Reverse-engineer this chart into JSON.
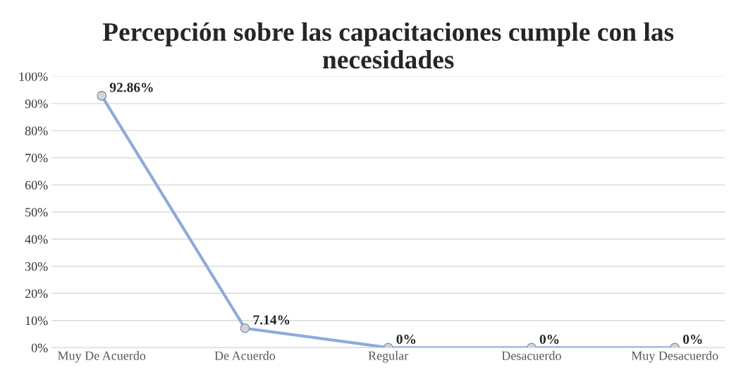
{
  "chart_data": {
    "type": "line",
    "title": "Percepción sobre las capacitaciones cumple con las necesidades",
    "categories": [
      "Muy De Acuerdo",
      "De Acuerdo",
      "Regular",
      "Desacuerdo",
      "Muy Desacuerdo"
    ],
    "series": [
      {
        "color": "#8eaadb",
        "values": [
          92.86,
          7.14,
          0,
          0,
          0
        ],
        "value_labels": [
          "92.86%",
          "7.14%",
          "0%",
          "0%",
          "0%"
        ]
      }
    ],
    "ylim": [
      0,
      100
    ],
    "yticks": [
      {
        "value": 0,
        "label": "0%"
      },
      {
        "value": 10,
        "label": "10%"
      },
      {
        "value": 20,
        "label": "20%"
      },
      {
        "value": 30,
        "label": "30%"
      },
      {
        "value": 40,
        "label": "40%"
      },
      {
        "value": 50,
        "label": "50%"
      },
      {
        "value": 60,
        "label": "60%"
      },
      {
        "value": 70,
        "label": "70%"
      },
      {
        "value": 80,
        "label": "80%"
      },
      {
        "value": 90,
        "label": "90%"
      },
      {
        "value": 100,
        "label": "100%"
      }
    ],
    "grid": "y",
    "marker": "circle",
    "line_style": "solid",
    "legend": false
  }
}
